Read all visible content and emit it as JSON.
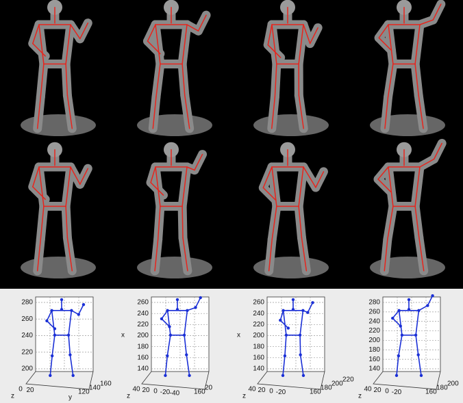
{
  "figure": {
    "plots": [
      {
        "vertical_ticks": [
          "280",
          "260",
          "240",
          "220",
          "200"
        ],
        "vertical_label": "",
        "left_ticks": [
          "0",
          "20"
        ],
        "left_label": "z",
        "right_ticks": [
          "120",
          "140",
          "160"
        ],
        "right_label": "y"
      },
      {
        "vertical_ticks": [
          "260",
          "240",
          "220",
          "200",
          "180",
          "160",
          "140"
        ],
        "vertical_label": "x",
        "left_ticks": [
          "40",
          "20",
          "0",
          "-20",
          "-40"
        ],
        "left_label": "z",
        "right_ticks": [
          "160",
          "20"
        ],
        "right_label": ""
      },
      {
        "vertical_ticks": [
          "260",
          "240",
          "220",
          "200",
          "180",
          "160",
          "140"
        ],
        "vertical_label": "x",
        "left_ticks": [
          "40",
          "20",
          "0",
          "-20"
        ],
        "left_label": "z",
        "right_ticks": [
          "160",
          "180",
          "200",
          "220"
        ],
        "right_label": ""
      },
      {
        "vertical_ticks": [
          "280",
          "260",
          "240",
          "220",
          "200",
          "180",
          "160",
          "140"
        ],
        "vertical_label": "",
        "left_ticks": [
          "40",
          "20",
          "0",
          "-20"
        ],
        "left_label": "z",
        "right_ticks": [
          "160",
          "180",
          "200"
        ],
        "right_label": ""
      }
    ]
  }
}
